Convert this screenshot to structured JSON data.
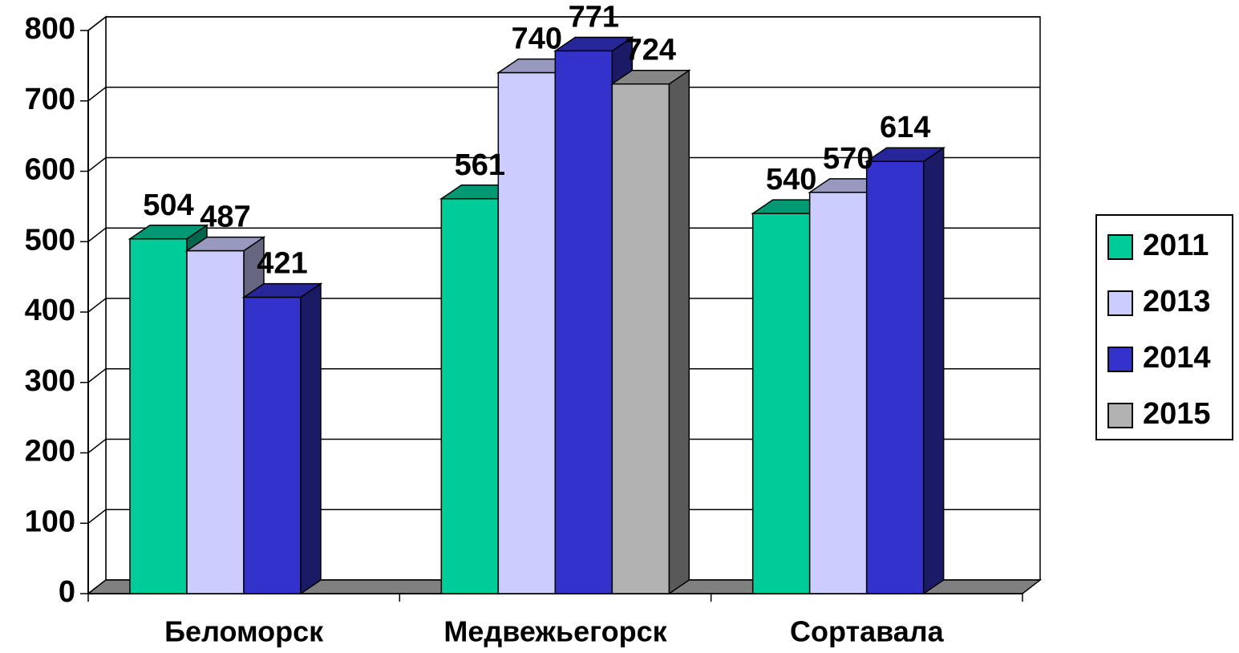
{
  "chart_data": {
    "type": "bar3d",
    "categories": [
      "Беломорск",
      "Медвежьегорск",
      "Сортавала"
    ],
    "series": [
      {
        "name": "2011",
        "color": "#00cc99",
        "values": [
          504,
          561,
          540
        ]
      },
      {
        "name": "2013",
        "color": "#ccccff",
        "values": [
          487,
          740,
          570
        ]
      },
      {
        "name": "2014",
        "color": "#3333cc",
        "values": [
          421,
          771,
          614
        ]
      },
      {
        "name": "2015",
        "color": "#b2b2b2",
        "values": [
          null,
          724,
          null
        ]
      }
    ],
    "ylim": [
      0,
      800
    ],
    "yticks": [
      0,
      100,
      200,
      300,
      400,
      500,
      600,
      700,
      800
    ],
    "grid": true,
    "legend": "right"
  }
}
